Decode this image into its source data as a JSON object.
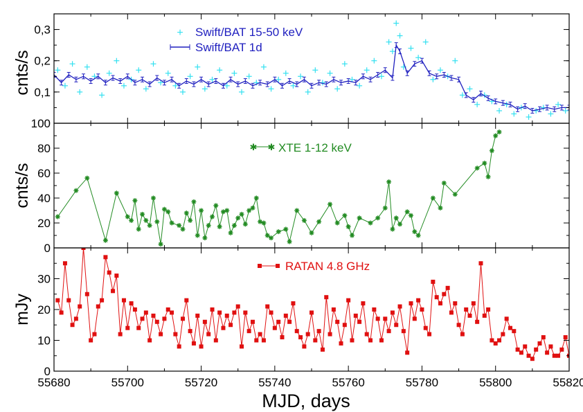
{
  "chart_data": [
    {
      "type": "scatter",
      "panel": "top",
      "ylabel": "cnts/s",
      "ylim": [
        0.0,
        0.35
      ],
      "yticks": [
        "0,1",
        "0,2",
        "0,3"
      ],
      "ytick_values": [
        0.1,
        0.2,
        0.3
      ],
      "xlim": [
        55680,
        55820
      ],
      "series": [
        {
          "name": "Swift/BAT 15-50 keV",
          "color": "#33e0f0",
          "marker": "plus",
          "x": [
            55681,
            55683,
            55685,
            55687,
            55689,
            55691,
            55693,
            55695,
            55697,
            55699,
            55701,
            55703,
            55705,
            55707,
            55709,
            55711,
            55713,
            55715,
            55717,
            55719,
            55721,
            55723,
            55725,
            55727,
            55729,
            55731,
            55733,
            55735,
            55737,
            55739,
            55741,
            55743,
            55745,
            55747,
            55749,
            55751,
            55753,
            55755,
            55757,
            55759,
            55761,
            55763,
            55765,
            55767,
            55769,
            55771,
            55772,
            55773,
            55774,
            55775,
            55777,
            55779,
            55781,
            55783,
            55785,
            55787,
            55789,
            55791,
            55793,
            55795,
            55797,
            55799,
            55801,
            55803,
            55805,
            55807,
            55809,
            55811,
            55813,
            55815,
            55817,
            55819
          ],
          "y": [
            0.17,
            0.12,
            0.19,
            0.1,
            0.18,
            0.15,
            0.09,
            0.16,
            0.2,
            0.12,
            0.14,
            0.17,
            0.11,
            0.19,
            0.13,
            0.16,
            0.12,
            0.1,
            0.15,
            0.18,
            0.11,
            0.14,
            0.17,
            0.12,
            0.16,
            0.1,
            0.15,
            0.13,
            0.18,
            0.11,
            0.14,
            0.16,
            0.12,
            0.15,
            0.1,
            0.17,
            0.13,
            0.16,
            0.11,
            0.19,
            0.14,
            0.12,
            0.17,
            0.2,
            0.15,
            0.26,
            0.23,
            0.32,
            0.28,
            0.18,
            0.24,
            0.21,
            0.26,
            0.14,
            0.17,
            0.15,
            0.2,
            0.09,
            0.11,
            0.06,
            0.09,
            0.07,
            0.04,
            0.06,
            0.03,
            0.05,
            0.02,
            0.04,
            0.05,
            0.03,
            0.06,
            0.04
          ]
        },
        {
          "name": "Swift/BAT 1d",
          "color": "#1f1fbf",
          "marker": "errorbar-line",
          "x": [
            55680,
            55682,
            55684,
            55686,
            55688,
            55690,
            55692,
            55694,
            55696,
            55698,
            55700,
            55702,
            55704,
            55706,
            55708,
            55710,
            55712,
            55714,
            55716,
            55718,
            55720,
            55722,
            55724,
            55726,
            55728,
            55730,
            55732,
            55734,
            55736,
            55738,
            55740,
            55742,
            55744,
            55746,
            55748,
            55750,
            55752,
            55754,
            55756,
            55758,
            55760,
            55762,
            55764,
            55766,
            55768,
            55770,
            55772,
            55773,
            55774,
            55776,
            55778,
            55780,
            55782,
            55784,
            55786,
            55788,
            55790,
            55792,
            55794,
            55796,
            55798,
            55800,
            55802,
            55804,
            55806,
            55808,
            55810,
            55812,
            55814,
            55816,
            55818,
            55820
          ],
          "y": [
            0.155,
            0.13,
            0.155,
            0.14,
            0.15,
            0.135,
            0.15,
            0.13,
            0.145,
            0.135,
            0.15,
            0.13,
            0.14,
            0.125,
            0.145,
            0.13,
            0.14,
            0.12,
            0.135,
            0.125,
            0.14,
            0.125,
            0.135,
            0.12,
            0.14,
            0.125,
            0.135,
            0.12,
            0.13,
            0.125,
            0.14,
            0.12,
            0.135,
            0.125,
            0.14,
            0.12,
            0.13,
            0.125,
            0.14,
            0.13,
            0.135,
            0.13,
            0.15,
            0.14,
            0.155,
            0.17,
            0.145,
            0.25,
            0.23,
            0.16,
            0.19,
            0.2,
            0.16,
            0.15,
            0.155,
            0.145,
            0.14,
            0.09,
            0.075,
            0.095,
            0.08,
            0.07,
            0.065,
            0.06,
            0.045,
            0.055,
            0.04,
            0.045,
            0.05,
            0.045,
            0.05,
            0.05
          ]
        }
      ]
    },
    {
      "type": "line",
      "panel": "middle",
      "ylabel": "cnts/s",
      "ylim": [
        0,
        100
      ],
      "yticks": [
        "0",
        "20",
        "40",
        "60",
        "80",
        "100"
      ],
      "ytick_values": [
        0,
        20,
        40,
        60,
        80,
        100
      ],
      "xlim": [
        55680,
        55820
      ],
      "series": [
        {
          "name": "XTE 1-12 keV",
          "color": "#228b22",
          "marker": "star",
          "x": [
            55681,
            55686,
            55689,
            55694,
            55697,
            55700,
            55701,
            55702,
            55703,
            55704,
            55705,
            55706,
            55707,
            55708,
            55709,
            55710,
            55711,
            55712,
            55714,
            55715,
            55716,
            55717,
            55718,
            55719,
            55720,
            55721,
            55722,
            55723,
            55724,
            55725,
            55726,
            55727,
            55728,
            55729,
            55730,
            55731,
            55732,
            55733,
            55734,
            55735,
            55736,
            55737,
            55738,
            55739,
            55741,
            55743,
            55744,
            55746,
            55748,
            55750,
            55752,
            55755,
            55757,
            55759,
            55760,
            55761,
            55763,
            55766,
            55768,
            55770,
            55771,
            55772,
            55773,
            55774,
            55776,
            55777,
            55778,
            55779,
            55783,
            55785,
            55786,
            55789,
            55795,
            55797,
            55798,
            55799,
            55800,
            55801
          ],
          "y": [
            25,
            46,
            56,
            6,
            44,
            25,
            22,
            38,
            15,
            27,
            22,
            18,
            40,
            21,
            3,
            31,
            29,
            20,
            18,
            15,
            28,
            22,
            37,
            10,
            30,
            8,
            18,
            25,
            34,
            17,
            29,
            30,
            12,
            18,
            24,
            27,
            19,
            30,
            32,
            40,
            21,
            20,
            10,
            8,
            13,
            15,
            5,
            30,
            22,
            12,
            21,
            35,
            20,
            26,
            17,
            10,
            24,
            20,
            24,
            32,
            53,
            15,
            24,
            19,
            29,
            26,
            13,
            10,
            40,
            32,
            52,
            43,
            64,
            68,
            57,
            78,
            90,
            93
          ]
        }
      ]
    },
    {
      "type": "line",
      "panel": "bottom",
      "ylabel": "mJy",
      "xlabel": "MJD, days",
      "ylim": [
        0,
        40
      ],
      "yticks": [
        "0",
        "10",
        "20",
        "30"
      ],
      "ytick_values": [
        0,
        10,
        20,
        30
      ],
      "xlim": [
        55680,
        55820
      ],
      "xticks": [
        "55680",
        "55700",
        "55720",
        "55740",
        "55760",
        "55780",
        "55800",
        "55820"
      ],
      "xtick_values": [
        55680,
        55700,
        55720,
        55740,
        55760,
        55780,
        55800,
        55820
      ],
      "series": [
        {
          "name": "RATAN 4.8 GHz",
          "color": "#e01010",
          "marker": "square",
          "x": [
            55681,
            55682,
            55683,
            55684,
            55685,
            55686,
            55687,
            55688,
            55689,
            55690,
            55691,
            55692,
            55693,
            55694,
            55695,
            55696,
            55697,
            55698,
            55699,
            55700,
            55701,
            55702,
            55703,
            55704,
            55705,
            55706,
            55707,
            55708,
            55709,
            55710,
            55711,
            55712,
            55713,
            55714,
            55715,
            55716,
            55717,
            55718,
            55719,
            55720,
            55721,
            55722,
            55723,
            55724,
            55725,
            55726,
            55727,
            55728,
            55729,
            55730,
            55731,
            55732,
            55733,
            55734,
            55735,
            55736,
            55737,
            55738,
            55739,
            55740,
            55741,
            55742,
            55743,
            55744,
            55745,
            55746,
            55747,
            55748,
            55749,
            55750,
            55751,
            55752,
            55753,
            55754,
            55755,
            55756,
            55757,
            55758,
            55759,
            55760,
            55761,
            55762,
            55763,
            55764,
            55765,
            55766,
            55767,
            55768,
            55769,
            55770,
            55771,
            55772,
            55773,
            55774,
            55775,
            55776,
            55777,
            55778,
            55779,
            55780,
            55781,
            55782,
            55783,
            55784,
            55785,
            55786,
            55787,
            55788,
            55789,
            55790,
            55791,
            55792,
            55793,
            55794,
            55795,
            55796,
            55797,
            55798,
            55799,
            55800,
            55801,
            55802,
            55803,
            55804,
            55805,
            55806,
            55807,
            55808,
            55809,
            55810,
            55811,
            55812,
            55813,
            55814,
            55815,
            55816,
            55817,
            55818,
            55819,
            55820
          ],
          "y": [
            23,
            19,
            35,
            23,
            15,
            17,
            21,
            40,
            25,
            10,
            12,
            21,
            23,
            37,
            32,
            26,
            31,
            12,
            23,
            14,
            22,
            20,
            14,
            17,
            19,
            10,
            18,
            16,
            12,
            17,
            20,
            19,
            12,
            8,
            17,
            23,
            13,
            9,
            18,
            8,
            16,
            12,
            20,
            10,
            19,
            14,
            18,
            15,
            19,
            21,
            8,
            19,
            13,
            16,
            10,
            12,
            10,
            21,
            19,
            14,
            16,
            11,
            18,
            16,
            22,
            13,
            11,
            8,
            12,
            19,
            10,
            13,
            7,
            24,
            12,
            20,
            16,
            9,
            15,
            23,
            10,
            18,
            16,
            22,
            12,
            10,
            20,
            17,
            10,
            17,
            13,
            19,
            15,
            21,
            13,
            6,
            22,
            17,
            23,
            20,
            14,
            12,
            29,
            24,
            22,
            25,
            27,
            19,
            22,
            15,
            12,
            20,
            18,
            22,
            16,
            35,
            18,
            20,
            10,
            9,
            10,
            12,
            17,
            14,
            13,
            7,
            6,
            8,
            5,
            4,
            7,
            9,
            11,
            6,
            8,
            5,
            5,
            7,
            11,
            5
          ]
        }
      ]
    }
  ]
}
